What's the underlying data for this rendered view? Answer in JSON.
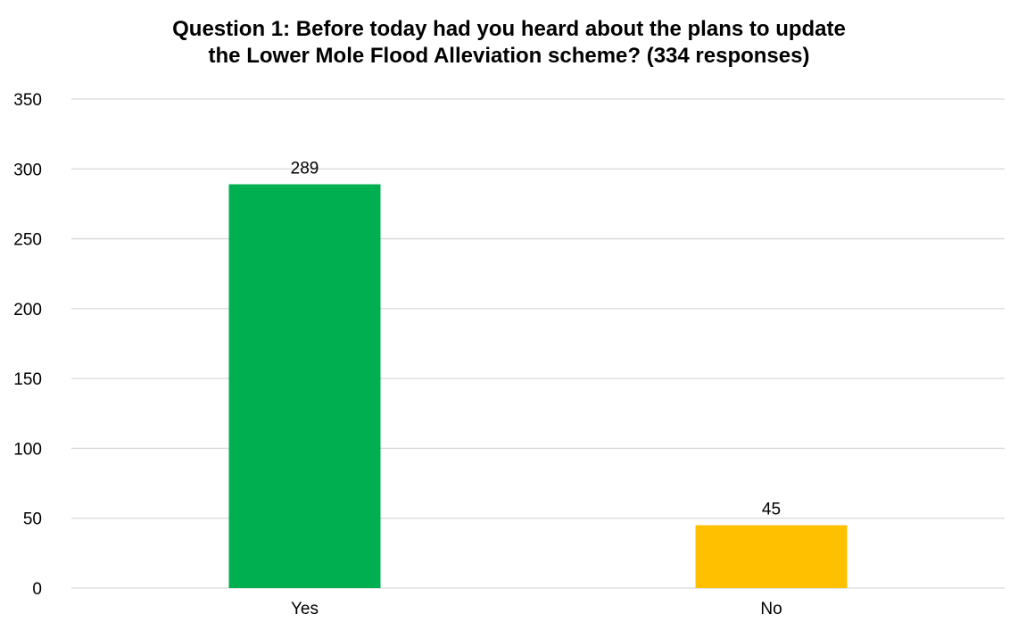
{
  "chart_data": {
    "type": "bar",
    "title_lines": [
      "Question 1: Before today had you heard about the plans to update",
      "the Lower Mole Flood Alleviation scheme? (334 responses)"
    ],
    "categories": [
      "Yes",
      "No"
    ],
    "values": [
      289,
      45
    ],
    "data_labels": [
      "289",
      "45"
    ],
    "bar_colors": [
      "#00B050",
      "#FFC000"
    ],
    "ylim": [
      0,
      350
    ],
    "yticks": [
      0,
      50,
      100,
      150,
      200,
      250,
      300,
      350
    ],
    "grid": true,
    "legend": "none",
    "xlabel": "",
    "ylabel": ""
  }
}
